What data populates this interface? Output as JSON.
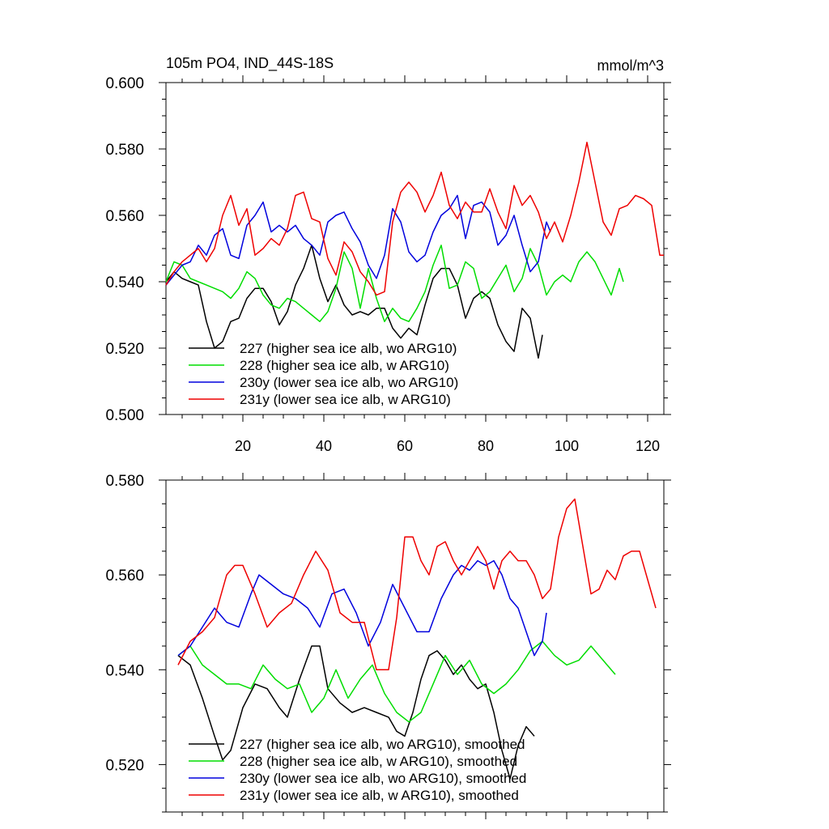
{
  "figure": {
    "title": "105m PO4, IND_44S-18S",
    "units": "mmol/m^3"
  },
  "chart_data": [
    {
      "type": "line",
      "panel": "top",
      "title": "105m PO4, IND_44S-18S",
      "units_label": "mmol/m^3",
      "xlim": [
        1,
        124
      ],
      "ylim": [
        0.5,
        0.6
      ],
      "x_major_ticks": [
        20,
        40,
        60,
        80,
        100,
        120
      ],
      "x_tick_labels": [
        "20",
        "40",
        "60",
        "80",
        "100",
        "120"
      ],
      "y_major_ticks": [
        0.5,
        0.52,
        0.54,
        0.56,
        0.58,
        0.6
      ],
      "y_tick_labels": [
        "0.500",
        "0.520",
        "0.540",
        "0.560",
        "0.580",
        "0.600"
      ],
      "legend_position": "bottom-left",
      "series": [
        {
          "name": "227 (higher sea ice alb, wo ARG10)",
          "color": "#000000",
          "x": [
            1,
            3,
            5,
            7,
            9,
            11,
            13,
            15,
            17,
            19,
            21,
            23,
            25,
            27,
            29,
            31,
            33,
            35,
            37,
            39,
            41,
            43,
            45,
            47,
            49,
            51,
            53,
            55,
            57,
            59,
            61,
            63,
            65,
            67,
            69,
            71,
            73,
            75,
            77,
            79,
            81,
            83,
            85,
            87,
            89,
            91,
            93,
            94
          ],
          "y": [
            0.54,
            0.543,
            0.541,
            0.54,
            0.539,
            0.528,
            0.52,
            0.522,
            0.528,
            0.529,
            0.535,
            0.538,
            0.538,
            0.534,
            0.527,
            0.531,
            0.539,
            0.544,
            0.551,
            0.541,
            0.534,
            0.539,
            0.533,
            0.53,
            0.531,
            0.53,
            0.532,
            0.532,
            0.526,
            0.523,
            0.526,
            0.524,
            0.533,
            0.541,
            0.544,
            0.544,
            0.539,
            0.529,
            0.535,
            0.537,
            0.535,
            0.527,
            0.522,
            0.519,
            0.532,
            0.529,
            0.517,
            0.524
          ]
        },
        {
          "name": "228 (higher sea ice alb, w ARG10)",
          "color": "#00dd00",
          "x": [
            1,
            3,
            5,
            7,
            9,
            11,
            13,
            15,
            17,
            19,
            21,
            23,
            25,
            27,
            29,
            31,
            33,
            35,
            37,
            39,
            41,
            43,
            45,
            47,
            49,
            51,
            53,
            55,
            57,
            59,
            61,
            63,
            65,
            67,
            69,
            71,
            73,
            75,
            77,
            79,
            81,
            83,
            85,
            87,
            89,
            91,
            93,
            95,
            97,
            99,
            101,
            103,
            105,
            107,
            109,
            111,
            113,
            114
          ],
          "y": [
            0.54,
            0.546,
            0.545,
            0.541,
            0.54,
            0.539,
            0.538,
            0.537,
            0.535,
            0.538,
            0.543,
            0.541,
            0.536,
            0.533,
            0.532,
            0.535,
            0.534,
            0.532,
            0.53,
            0.528,
            0.531,
            0.538,
            0.549,
            0.544,
            0.532,
            0.544,
            0.535,
            0.528,
            0.532,
            0.529,
            0.528,
            0.532,
            0.537,
            0.545,
            0.551,
            0.538,
            0.539,
            0.546,
            0.544,
            0.535,
            0.537,
            0.541,
            0.545,
            0.537,
            0.541,
            0.55,
            0.545,
            0.536,
            0.54,
            0.542,
            0.54,
            0.546,
            0.549,
            0.546,
            0.541,
            0.536,
            0.544,
            0.54
          ]
        },
        {
          "name": "230y (lower sea ice alb, wo ARG10)",
          "color": "#0000dd",
          "x": [
            1,
            3,
            5,
            7,
            9,
            11,
            13,
            15,
            17,
            19,
            21,
            23,
            25,
            27,
            29,
            31,
            33,
            35,
            37,
            39,
            41,
            43,
            45,
            47,
            49,
            51,
            53,
            55,
            57,
            59,
            61,
            63,
            65,
            67,
            69,
            71,
            73,
            75,
            77,
            79,
            81,
            83,
            85,
            87,
            89,
            91,
            93,
            95,
            96
          ],
          "y": [
            0.539,
            0.542,
            0.545,
            0.546,
            0.551,
            0.548,
            0.554,
            0.556,
            0.548,
            0.547,
            0.557,
            0.56,
            0.564,
            0.555,
            0.557,
            0.555,
            0.557,
            0.553,
            0.551,
            0.548,
            0.558,
            0.56,
            0.561,
            0.556,
            0.552,
            0.545,
            0.541,
            0.548,
            0.562,
            0.558,
            0.549,
            0.546,
            0.548,
            0.555,
            0.56,
            0.562,
            0.566,
            0.553,
            0.563,
            0.564,
            0.561,
            0.551,
            0.554,
            0.56,
            0.551,
            0.543,
            0.546,
            0.558,
            0.555
          ]
        },
        {
          "name": "231y (lower sea ice alb, w ARG10)",
          "color": "#ee0000",
          "x": [
            1,
            3,
            5,
            7,
            9,
            11,
            13,
            15,
            17,
            19,
            21,
            23,
            25,
            27,
            29,
            31,
            33,
            35,
            37,
            39,
            41,
            43,
            45,
            47,
            49,
            51,
            53,
            55,
            57,
            59,
            61,
            63,
            65,
            67,
            69,
            71,
            73,
            75,
            77,
            79,
            81,
            83,
            85,
            87,
            89,
            91,
            93,
            95,
            97,
            99,
            101,
            103,
            105,
            107,
            109,
            111,
            113,
            115,
            117,
            119,
            121,
            123,
            124
          ],
          "y": [
            0.539,
            0.543,
            0.546,
            0.548,
            0.55,
            0.546,
            0.55,
            0.56,
            0.566,
            0.557,
            0.562,
            0.548,
            0.55,
            0.553,
            0.551,
            0.556,
            0.566,
            0.567,
            0.559,
            0.558,
            0.547,
            0.542,
            0.552,
            0.549,
            0.543,
            0.54,
            0.536,
            0.537,
            0.558,
            0.567,
            0.57,
            0.567,
            0.561,
            0.566,
            0.573,
            0.563,
            0.559,
            0.564,
            0.561,
            0.561,
            0.568,
            0.561,
            0.556,
            0.569,
            0.563,
            0.566,
            0.561,
            0.553,
            0.558,
            0.552,
            0.56,
            0.57,
            0.582,
            0.57,
            0.558,
            0.554,
            0.562,
            0.563,
            0.566,
            0.565,
            0.563,
            0.548,
            0.548
          ]
        }
      ]
    },
    {
      "type": "line",
      "panel": "bottom",
      "xlim": [
        1,
        124
      ],
      "ylim": [
        0.51,
        0.58
      ],
      "x_major_ticks": [
        20,
        40,
        60,
        80,
        100,
        120
      ],
      "y_major_ticks": [
        0.52,
        0.54,
        0.56,
        0.58
      ],
      "y_tick_labels": [
        "0.520",
        "0.540",
        "0.560",
        "0.580"
      ],
      "legend_position": "bottom-left",
      "series": [
        {
          "name": "227 (higher sea ice alb, wo ARG10), smoothed",
          "color": "#000000",
          "x": [
            4,
            7,
            10,
            13,
            15,
            17,
            20,
            23,
            26,
            29,
            31,
            34,
            37,
            39,
            41,
            44,
            47,
            50,
            53,
            56,
            58,
            60,
            62,
            64,
            66,
            68,
            70,
            72,
            74,
            76,
            78,
            80,
            82,
            84,
            86,
            88,
            90,
            92
          ],
          "y": [
            0.543,
            0.541,
            0.534,
            0.526,
            0.521,
            0.523,
            0.532,
            0.537,
            0.536,
            0.532,
            0.53,
            0.538,
            0.545,
            0.545,
            0.536,
            0.533,
            0.531,
            0.532,
            0.531,
            0.53,
            0.527,
            0.526,
            0.531,
            0.538,
            0.543,
            0.544,
            0.542,
            0.539,
            0.541,
            0.538,
            0.536,
            0.537,
            0.531,
            0.523,
            0.517,
            0.524,
            0.528,
            0.526
          ]
        },
        {
          "name": "228 (higher sea ice alb, w ARG10), smoothed",
          "color": "#00dd00",
          "x": [
            4,
            7,
            10,
            13,
            16,
            19,
            22,
            25,
            28,
            31,
            34,
            37,
            40,
            43,
            46,
            49,
            52,
            55,
            58,
            61,
            64,
            67,
            70,
            73,
            76,
            79,
            82,
            85,
            88,
            91,
            94,
            97,
            100,
            103,
            106,
            109,
            112
          ],
          "y": [
            0.543,
            0.545,
            0.541,
            0.539,
            0.537,
            0.537,
            0.536,
            0.541,
            0.538,
            0.536,
            0.537,
            0.531,
            0.534,
            0.54,
            0.534,
            0.538,
            0.541,
            0.535,
            0.531,
            0.529,
            0.531,
            0.537,
            0.543,
            0.539,
            0.542,
            0.537,
            0.535,
            0.537,
            0.54,
            0.544,
            0.546,
            0.543,
            0.541,
            0.542,
            0.545,
            0.542,
            0.539
          ]
        },
        {
          "name": "230y (lower sea ice alb, wo ARG10), smoothed",
          "color": "#0000dd",
          "x": [
            4,
            7,
            10,
            13,
            16,
            19,
            22,
            24,
            27,
            30,
            33,
            36,
            39,
            42,
            45,
            48,
            51,
            54,
            57,
            60,
            63,
            66,
            69,
            72,
            74,
            76,
            78,
            80,
            82,
            84,
            86,
            88,
            90,
            92,
            94,
            95
          ],
          "y": [
            0.543,
            0.545,
            0.549,
            0.553,
            0.55,
            0.549,
            0.556,
            0.56,
            0.558,
            0.556,
            0.555,
            0.553,
            0.549,
            0.556,
            0.557,
            0.552,
            0.545,
            0.55,
            0.558,
            0.553,
            0.548,
            0.548,
            0.555,
            0.56,
            0.562,
            0.561,
            0.563,
            0.562,
            0.563,
            0.56,
            0.555,
            0.553,
            0.548,
            0.543,
            0.546,
            0.552
          ]
        },
        {
          "name": "231y (lower sea ice alb, w ARG10), smoothed",
          "color": "#ee0000",
          "x": [
            4,
            7,
            10,
            13,
            16,
            18,
            20,
            23,
            26,
            29,
            32,
            35,
            38,
            41,
            44,
            47,
            50,
            53,
            56,
            58,
            60,
            62,
            64,
            66,
            68,
            70,
            72,
            74,
            76,
            78,
            80,
            82,
            84,
            86,
            88,
            90,
            92,
            94,
            96,
            98,
            100,
            102,
            104,
            106,
            108,
            110,
            112,
            114,
            116,
            118,
            120,
            122
          ],
          "y": [
            0.541,
            0.546,
            0.548,
            0.551,
            0.56,
            0.562,
            0.562,
            0.556,
            0.549,
            0.552,
            0.554,
            0.56,
            0.565,
            0.561,
            0.552,
            0.55,
            0.55,
            0.54,
            0.54,
            0.551,
            0.568,
            0.568,
            0.563,
            0.56,
            0.566,
            0.567,
            0.563,
            0.56,
            0.563,
            0.566,
            0.563,
            0.557,
            0.563,
            0.565,
            0.563,
            0.563,
            0.56,
            0.555,
            0.557,
            0.568,
            0.574,
            0.576,
            0.566,
            0.556,
            0.557,
            0.561,
            0.559,
            0.564,
            0.565,
            0.565,
            0.559,
            0.553
          ]
        }
      ]
    }
  ]
}
